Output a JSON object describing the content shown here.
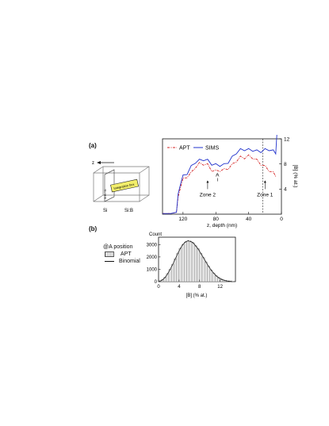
{
  "panel_a": {
    "label": "(a)",
    "schematic": {
      "axis_label": "z",
      "box_label": "Integration box",
      "left_label": "Si",
      "right_label": "Si:B",
      "side_label": "Si:B / Si"
    },
    "chart_data": {
      "type": "line",
      "xlabel": "z, depth (nm)",
      "ylabel": "[B] (% at.)",
      "x_ticks": [
        "120",
        "80",
        "40",
        "0"
      ],
      "y_ticks": [
        "4",
        "8",
        "12"
      ],
      "xlim": [
        145,
        0
      ],
      "ylim": [
        0,
        12
      ],
      "x_reversed": true,
      "y_axis_side": "right",
      "series": [
        {
          "name": "APT",
          "color": "#d42020",
          "style": "dash-dot",
          "points": [
            [
              145,
              0.1
            ],
            [
              135,
              0.1
            ],
            [
              128,
              0.3
            ],
            [
              126,
              2.5
            ],
            [
              123,
              4.5
            ],
            [
              120,
              5.5
            ],
            [
              115,
              6.0
            ],
            [
              110,
              6.5
            ],
            [
              105,
              7.5
            ],
            [
              100,
              8.0
            ],
            [
              95,
              8.0
            ],
            [
              90,
              7.8
            ],
            [
              85,
              7.0
            ],
            [
              80,
              6.8
            ],
            [
              75,
              7.0
            ],
            [
              70,
              7.0
            ],
            [
              65,
              7.3
            ],
            [
              60,
              7.8
            ],
            [
              55,
              8.5
            ],
            [
              50,
              9.0
            ],
            [
              45,
              9.0
            ],
            [
              40,
              9.2
            ],
            [
              35,
              9.0
            ],
            [
              30,
              8.5
            ],
            [
              25,
              8.0
            ],
            [
              20,
              7.5
            ],
            [
              15,
              7.0
            ],
            [
              10,
              6.5
            ],
            [
              7,
              6.2
            ]
          ]
        },
        {
          "name": "SIMS",
          "color": "#2233cc",
          "style": "solid",
          "points": [
            [
              145,
              0.1
            ],
            [
              135,
              0.1
            ],
            [
              128,
              0.3
            ],
            [
              126,
              3.0
            ],
            [
              123,
              5.0
            ],
            [
              120,
              6.0
            ],
            [
              115,
              6.5
            ],
            [
              110,
              7.5
            ],
            [
              105,
              8.3
            ],
            [
              100,
              8.5
            ],
            [
              95,
              8.7
            ],
            [
              90,
              8.5
            ],
            [
              85,
              8.0
            ],
            [
              80,
              7.8
            ],
            [
              75,
              7.8
            ],
            [
              70,
              7.8
            ],
            [
              65,
              8.3
            ],
            [
              60,
              9.0
            ],
            [
              55,
              9.8
            ],
            [
              50,
              10.2
            ],
            [
              45,
              10.3
            ],
            [
              40,
              10.2
            ],
            [
              35,
              10.2
            ],
            [
              30,
              10.0
            ],
            [
              25,
              10.0
            ],
            [
              20,
              10.2
            ],
            [
              15,
              10.3
            ],
            [
              10,
              10.0
            ],
            [
              7,
              9.8
            ],
            [
              6,
              11.5
            ],
            [
              5.5,
              13.0
            ]
          ]
        }
      ],
      "annotations": [
        {
          "text": "Zone 2",
          "x": 90,
          "y": 4.0
        },
        {
          "text": "Zone 1",
          "x": 20,
          "y": 4.0
        },
        {
          "text": "A",
          "x": 78,
          "y": 5.5
        }
      ],
      "legend_placement": "top-left"
    }
  },
  "panel_b": {
    "label": "(b)",
    "legend_title": "@A position",
    "legend_items": [
      "APT",
      "Binomial"
    ],
    "chart_data": {
      "type": "bar",
      "xlabel": "[B] (% at.)",
      "ylabel": "Count",
      "x_ticks": [
        "0",
        "4",
        "8",
        "12"
      ],
      "y_ticks": [
        "0",
        "1000",
        "2000",
        "3000"
      ],
      "xlim": [
        0,
        15
      ],
      "ylim": [
        0,
        3600
      ],
      "bin_width": 0.5,
      "bins_start": [
        0.0,
        0.5,
        1.0,
        1.5,
        2.0,
        2.5,
        3.0,
        3.5,
        4.0,
        4.5,
        5.0,
        5.5,
        6.0,
        6.5,
        7.0,
        7.5,
        8.0,
        8.5,
        9.0,
        9.5,
        10.0,
        10.5,
        11.0,
        11.5,
        12.0,
        12.5,
        13.0,
        13.5,
        14.0
      ],
      "apt_values": [
        50,
        150,
        350,
        650,
        1000,
        1400,
        1850,
        2300,
        2700,
        3000,
        3200,
        3300,
        3250,
        3150,
        2900,
        2650,
        2300,
        1950,
        1600,
        1250,
        950,
        700,
        480,
        320,
        200,
        120,
        70,
        40,
        20
      ],
      "binomial_values": [
        40,
        140,
        330,
        620,
        980,
        1380,
        1830,
        2280,
        2690,
        3010,
        3220,
        3310,
        3260,
        3140,
        2890,
        2630,
        2290,
        1940,
        1590,
        1240,
        940,
        690,
        470,
        310,
        190,
        115,
        65,
        35,
        18
      ]
    }
  }
}
